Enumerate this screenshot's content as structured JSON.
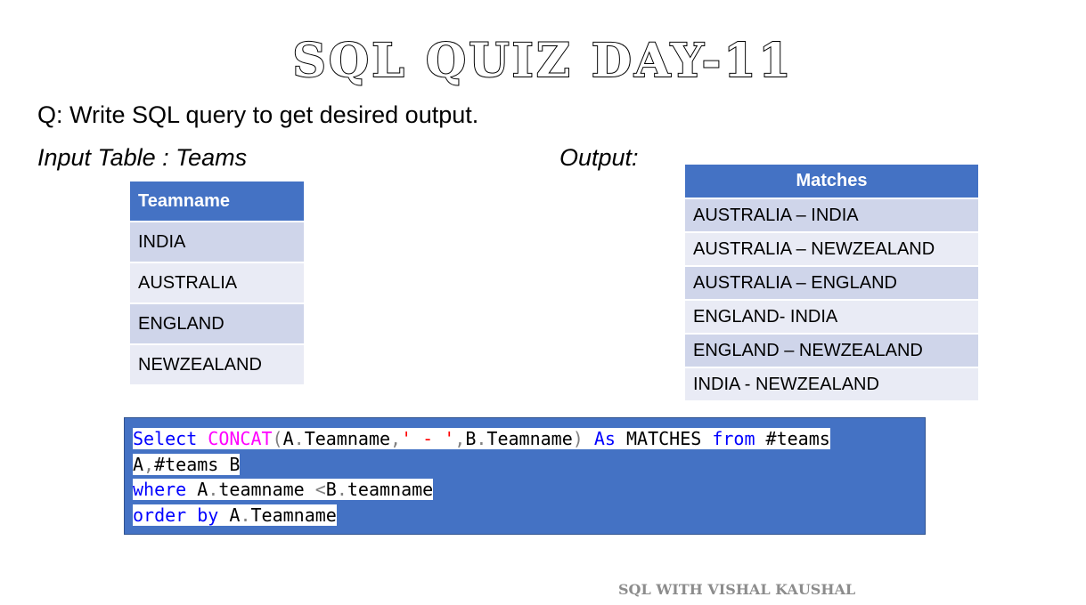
{
  "title": "SQL QUIZ DAY-11",
  "question": "Q: Write SQL query to get desired output.",
  "input_label": "Input Table : Teams",
  "output_label": "Output:",
  "teams_table": {
    "header": "Teamname",
    "rows": [
      "INDIA",
      "AUSTRALIA",
      "ENGLAND",
      "NEWZEALAND"
    ]
  },
  "matches_table": {
    "header": "Matches",
    "rows": [
      "AUSTRALIA – INDIA",
      "AUSTRALIA – NEWZEALAND",
      "AUSTRALIA – ENGLAND",
      "ENGLAND- INDIA",
      "ENGLAND – NEWZEALAND",
      "INDIA - NEWZEALAND"
    ]
  },
  "code": {
    "select": "Select",
    "concat": "CONCAT",
    "paren_open": "(",
    "a_alias": "A",
    "dot": ".",
    "teamname": "Teamname",
    "comma": ",",
    "sep_literal": "' - '",
    "b_alias": "B",
    "paren_close": ")",
    "as_kw": "As",
    "matches": "MATCHES",
    "from_kw": "from",
    "teams_tbl": "#teams",
    "where_kw": "where",
    "teamname_lc": "teamname",
    "lt": "<",
    "order_kw": "order",
    "by_kw": "by"
  },
  "footer": "SQL WITH VISHAL KAUSHAL"
}
